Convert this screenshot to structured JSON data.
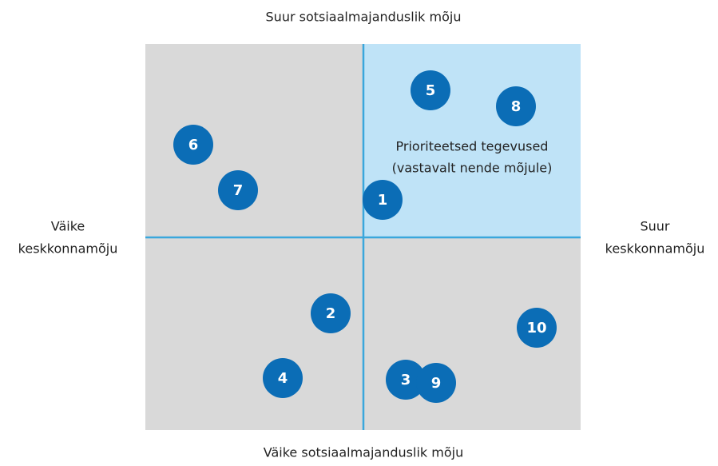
{
  "axes": {
    "top": "Suur sotsiaalmajanduslik mõju",
    "bottom": "Väike sotsiaalmajanduslik mõju",
    "left": [
      "Väike",
      "keskkonnamõju"
    ],
    "right": [
      "Suur",
      "keskkonnamõju"
    ]
  },
  "quadrant_label": [
    "Prioriteetsed tegevused",
    "(vastavalt nende mõjule)"
  ],
  "nodes": [
    {
      "label": "5"
    },
    {
      "label": "8"
    },
    {
      "label": "6"
    },
    {
      "label": "7"
    },
    {
      "label": "1"
    },
    {
      "label": "2"
    },
    {
      "label": "10"
    },
    {
      "label": "4"
    },
    {
      "label": "3"
    },
    {
      "label": "9"
    }
  ]
}
